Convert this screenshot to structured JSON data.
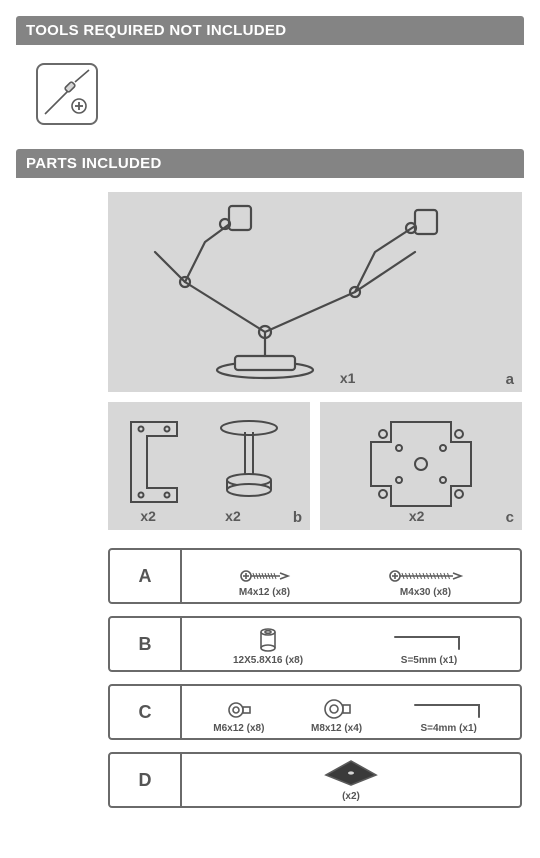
{
  "colors": {
    "header_bg": "#848484",
    "header_text": "#ffffff",
    "panel_bg": "#d7d7d7",
    "line": "#5a5a5a",
    "text": "#5d5d5d"
  },
  "sections": {
    "tools_title": "TOOLS REQUIRED NOT INCLUDED",
    "parts_title": "PARTS INCLUDED"
  },
  "tool": {
    "name": "phillips-screwdriver"
  },
  "panels": {
    "a": {
      "label": "a",
      "qty": "x1"
    },
    "b": {
      "label": "b",
      "qty1": "x2",
      "qty2": "x2"
    },
    "c": {
      "label": "c",
      "qty": "x2"
    }
  },
  "hardware": [
    {
      "letter": "A",
      "items": [
        {
          "label": "M4x12 (x8)",
          "icon": "screw-short"
        },
        {
          "label": "M4x30 (x8)",
          "icon": "screw-long"
        }
      ]
    },
    {
      "letter": "B",
      "items": [
        {
          "label": "12X5.8X16 (x8)",
          "icon": "spacer"
        },
        {
          "label": "S=5mm (x1)",
          "icon": "allen-key"
        }
      ]
    },
    {
      "letter": "C",
      "items": [
        {
          "label": "M6x12 (x8)",
          "icon": "bolt-small"
        },
        {
          "label": "M8x12 (x4)",
          "icon": "bolt-large"
        },
        {
          "label": "S=4mm (x1)",
          "icon": "allen-key"
        }
      ]
    },
    {
      "letter": "D",
      "items": [
        {
          "label": "(x2)",
          "icon": "pad"
        }
      ]
    }
  ]
}
